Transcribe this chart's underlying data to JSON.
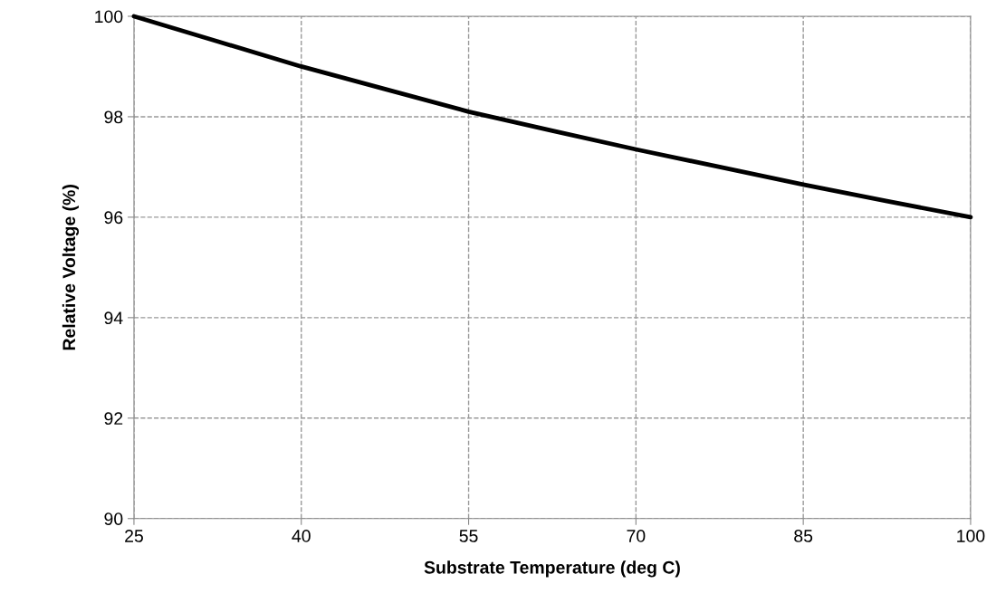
{
  "chart_data": {
    "type": "line",
    "xlabel": "Substrate Temperature (deg C)",
    "ylabel": "Relative Voltage (%)",
    "x": [
      25,
      32.5,
      40,
      47.5,
      55,
      62.5,
      70,
      77.5,
      85,
      92.5,
      100
    ],
    "series": [
      {
        "color": "#000000",
        "values": [
          100,
          99.5,
          99.0,
          98.55,
          98.1,
          97.72,
          97.35,
          97.0,
          96.65,
          96.32,
          96.0
        ]
      }
    ],
    "xlim": [
      25,
      100
    ],
    "xticks": [
      25,
      40,
      55,
      70,
      85,
      100
    ],
    "ylim": [
      90,
      100
    ],
    "yticks": [
      90,
      92,
      94,
      96,
      98,
      100
    ],
    "grid": true,
    "line_style": "solid"
  }
}
